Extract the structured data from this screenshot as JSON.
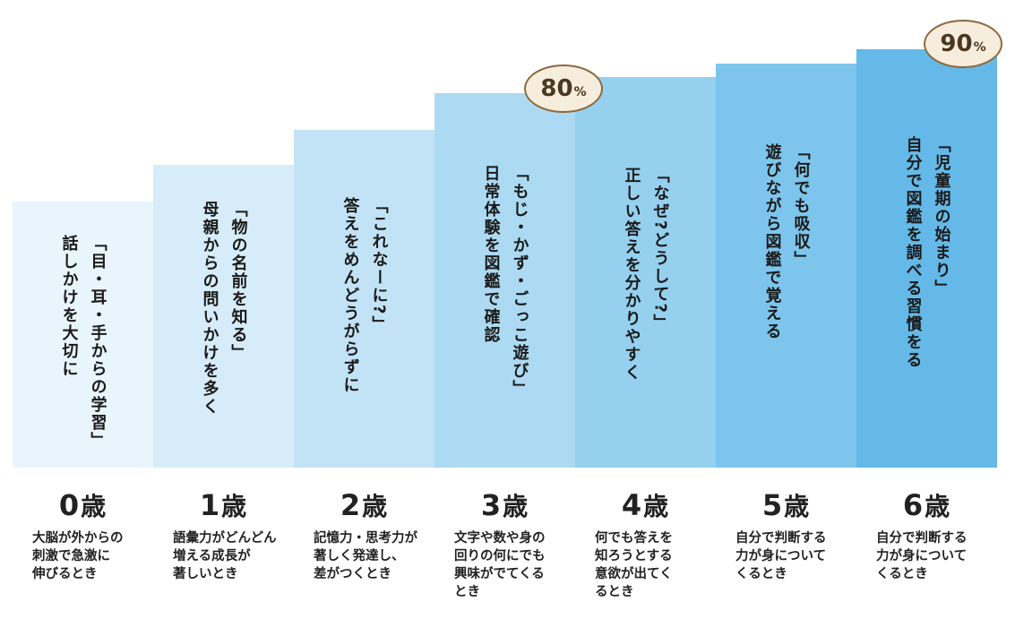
{
  "stages": [
    {
      "age": "0",
      "unit": "歳",
      "color": "#e9f5fc",
      "lines": [
        "「目・耳・手からの学習」",
        "話しかけを大切に"
      ],
      "desc": [
        "大脳が外からの",
        "刺激で急激に",
        "伸びるとき"
      ]
    },
    {
      "age": "1",
      "unit": "歳",
      "color": "#d6ecf8",
      "lines": [
        "「物の名前を知る」",
        "母親からの問いかけを多く"
      ],
      "desc": [
        "語彙力がどんどん",
        "増える成長が",
        "著しいとき"
      ]
    },
    {
      "age": "2",
      "unit": "歳",
      "color": "#c2e3f5",
      "lines": [
        "「これなーに?」",
        "答えをめんどうがらずに"
      ],
      "desc": [
        "記憶力・思考力が",
        "著しく発達し、",
        "差がつくとき"
      ]
    },
    {
      "age": "3",
      "unit": "歳",
      "color": "#acdaf2",
      "lines": [
        "「もじ・かず・ごっこ遊び」",
        "日常体験を図鑑で確認"
      ],
      "desc": [
        "文字や数や身の",
        "回りの何にでも",
        "興味がでてくる",
        "とき"
      ]
    },
    {
      "age": "4",
      "unit": "歳",
      "color": "#95d0ef",
      "lines": [
        "「なぜ?どうして?」",
        "正しい答えを分かりやすく"
      ],
      "desc": [
        "何でも答えを",
        "知ろうとする",
        "意欲が出てく",
        "るとき"
      ]
    },
    {
      "age": "5",
      "unit": "歳",
      "color": "#7dc5ec",
      "lines": [
        "「何でも吸収」",
        "遊びながら図鑑で覚える"
      ],
      "desc": [
        "自分で判断する",
        "力が身について",
        "くるとき"
      ]
    },
    {
      "age": "6",
      "unit": "歳",
      "color": "#64b9e8",
      "lines": [
        "「児童期の始まり」",
        "自分で図鑑を調べる習慣をる"
      ],
      "desc": [
        "自分で判断する",
        "力が身について",
        "くるとき"
      ]
    }
  ],
  "badges": [
    {
      "value": "80",
      "unit": "%",
      "stage": 3
    },
    {
      "value": "90",
      "unit": "%",
      "stage": 6
    }
  ],
  "badge_color": "#f7eddc",
  "badge_border": "#8b6a40"
}
